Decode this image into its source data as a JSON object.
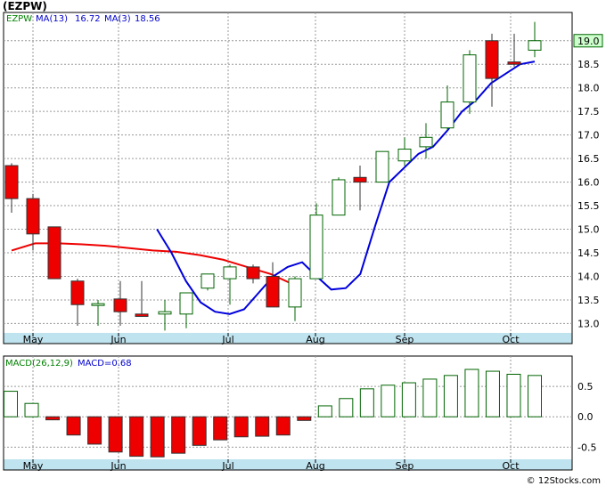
{
  "title": "(EZPW)",
  "watermark": "© 12Stocks.com",
  "colors": {
    "bg": "#ffffff",
    "grid": "#9a9a9a",
    "up_candle": "#006400",
    "down_candle": "#ee0000",
    "ma13": "#ee0000",
    "ma3": "#0000dd",
    "month_band": "#bfe3ef",
    "last_price_box": "#ccffcc"
  },
  "chart_data": [
    {
      "type": "candlestick",
      "legend": [
        {
          "label": "EZPW",
          "color": "#008000"
        },
        {
          "label": "MA(13)",
          "color": "#0000cc"
        },
        {
          "label": "16.72",
          "color": "#0000cc"
        },
        {
          "label": "MA(3)",
          "color": "#0000cc"
        },
        {
          "label": "18.56",
          "color": "#0000cc"
        }
      ],
      "last_price_label": "19.0",
      "x_labels": [
        "May",
        "Jun",
        "Jul",
        "Aug",
        "Sep",
        "Oct"
      ],
      "y_ticks": [
        13.0,
        13.5,
        14.0,
        14.5,
        15.0,
        15.5,
        16.0,
        16.5,
        17.0,
        17.5,
        18.0,
        18.5,
        19.0
      ],
      "ylim": [
        12.8,
        19.6
      ],
      "grid": true,
      "candles": [
        {
          "o": 16.35,
          "h": 16.4,
          "l": 15.35,
          "c": 15.65
        },
        {
          "o": 15.65,
          "h": 15.75,
          "l": 14.55,
          "c": 14.9
        },
        {
          "o": 15.05,
          "h": 15.05,
          "l": 13.95,
          "c": 13.95
        },
        {
          "o": 13.9,
          "h": 13.95,
          "l": 12.95,
          "c": 13.4
        },
        {
          "o": 13.4,
          "h": 13.5,
          "l": 12.95,
          "c": 13.42
        },
        {
          "o": 13.52,
          "h": 13.9,
          "l": 12.95,
          "c": 13.25
        },
        {
          "o": 13.2,
          "h": 13.9,
          "l": 13.15,
          "c": 13.15
        },
        {
          "o": 13.2,
          "h": 13.5,
          "l": 12.85,
          "c": 13.25
        },
        {
          "o": 13.2,
          "h": 13.65,
          "l": 12.9,
          "c": 13.65
        },
        {
          "o": 13.75,
          "h": 14.05,
          "l": 13.7,
          "c": 14.05
        },
        {
          "o": 13.95,
          "h": 14.25,
          "l": 13.4,
          "c": 14.2
        },
        {
          "o": 14.2,
          "h": 14.25,
          "l": 13.85,
          "c": 13.95
        },
        {
          "o": 14.0,
          "h": 14.3,
          "l": 13.35,
          "c": 13.35
        },
        {
          "o": 13.35,
          "h": 14.0,
          "l": 13.05,
          "c": 13.95
        },
        {
          "o": 13.95,
          "h": 15.55,
          "l": 13.95,
          "c": 15.3
        },
        {
          "o": 15.3,
          "h": 16.1,
          "l": 15.3,
          "c": 16.05
        },
        {
          "o": 16.1,
          "h": 16.35,
          "l": 15.4,
          "c": 16.0
        },
        {
          "o": 16.0,
          "h": 16.65,
          "l": 16.0,
          "c": 16.65
        },
        {
          "o": 16.45,
          "h": 16.95,
          "l": 16.35,
          "c": 16.7
        },
        {
          "o": 16.75,
          "h": 17.25,
          "l": 16.5,
          "c": 16.95
        },
        {
          "o": 17.15,
          "h": 18.05,
          "l": 17.1,
          "c": 17.7
        },
        {
          "o": 17.7,
          "h": 18.8,
          "l": 17.45,
          "c": 18.7
        },
        {
          "o": 19.0,
          "h": 19.15,
          "l": 17.6,
          "c": 18.2
        },
        {
          "o": 18.55,
          "h": 19.15,
          "l": 18.45,
          "c": 18.5
        },
        {
          "o": 18.8,
          "h": 19.4,
          "l": 18.65,
          "c": 19.0
        }
      ],
      "ma13": [
        14.55,
        14.7,
        14.7,
        14.68,
        14.65,
        14.6,
        14.55,
        14.52,
        14.45,
        14.35,
        14.2,
        14.05,
        13.82
      ],
      "ma3": [
        null,
        null,
        null,
        null,
        null,
        null,
        null,
        null,
        null,
        null,
        15.0,
        14.5,
        13.9,
        13.45,
        13.25,
        13.2,
        13.3,
        13.65,
        14.0,
        14.2,
        14.3,
        14.0,
        13.72,
        13.75,
        14.05,
        15.05,
        16.0,
        16.3,
        16.6,
        16.75,
        17.1,
        17.5,
        17.75,
        18.1,
        18.3,
        18.5,
        18.56
      ]
    },
    {
      "type": "bar",
      "legend": [
        {
          "label": "MACD(26,12,9)",
          "color": "#008000"
        },
        {
          "label": "MACD=0.68",
          "color": "#0000cc"
        }
      ],
      "x_labels": [
        "May",
        "Jun",
        "Jul",
        "Aug",
        "Sep",
        "Oct"
      ],
      "y_ticks": [
        -0.5,
        0.0,
        0.5
      ],
      "ylim": [
        -0.7,
        1.0
      ],
      "grid": true,
      "values": [
        0.42,
        0.22,
        -0.05,
        -0.3,
        -0.45,
        -0.58,
        -0.65,
        -0.66,
        -0.6,
        -0.47,
        -0.38,
        -0.33,
        -0.32,
        -0.3,
        -0.06,
        0.18,
        0.3,
        0.46,
        0.52,
        0.56,
        0.62,
        0.68,
        0.78,
        0.75,
        0.7,
        0.68
      ]
    }
  ]
}
